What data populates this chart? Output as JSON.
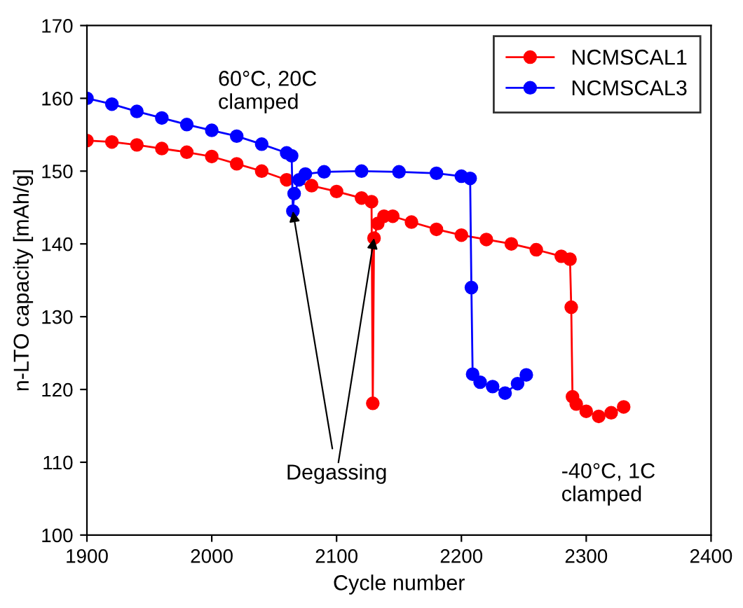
{
  "chart_data": {
    "type": "line",
    "xlabel": "Cycle number",
    "ylabel": "n-LTO capacity [mAh/g]",
    "xlim": [
      1900,
      2400
    ],
    "xticks": [
      1900,
      2000,
      2100,
      2200,
      2300,
      2400
    ],
    "ylim": [
      100,
      170
    ],
    "yticks": [
      100,
      110,
      120,
      130,
      140,
      150,
      160,
      170
    ],
    "grid": false,
    "legend": "top right",
    "marker": "circle",
    "line_style": "solid",
    "annotations": [
      "60°C, 20C\nclamped",
      {
        "text": "Degassing",
        "x": 2065,
        "y": 144.5
      },
      "-40°C, 1C\nclamped"
    ],
    "series": [
      {
        "name": "NCMSCAL1",
        "color": "#ff0000",
        "x": [
          1900,
          1920,
          1940,
          1960,
          1980,
          2000,
          2020,
          2040,
          2060,
          2080,
          2100,
          2120,
          2128,
          2129,
          2130,
          2133,
          2138,
          2145,
          2160,
          2180,
          2200,
          2220,
          2240,
          2260,
          2280,
          2287,
          2288,
          2289,
          2292,
          2300,
          2310,
          2320,
          2330
        ],
        "values": [
          154.2,
          154.0,
          153.6,
          153.1,
          152.6,
          152.0,
          151.0,
          150.0,
          148.8,
          148.0,
          147.2,
          146.3,
          145.8,
          118.1,
          140.8,
          142.8,
          143.8,
          143.8,
          143.0,
          142.0,
          141.2,
          140.6,
          140.0,
          139.2,
          138.3,
          137.9,
          131.3,
          119.0,
          118.0,
          117.0,
          116.3,
          116.8,
          117.6
        ]
      },
      {
        "name": "NCMSCAL3",
        "color": "#0000ff",
        "x": [
          1900,
          1920,
          1940,
          1960,
          1980,
          2000,
          2020,
          2040,
          2060,
          2064,
          2065,
          2066,
          2070,
          2075,
          2090,
          2120,
          2150,
          2180,
          2200,
          2207,
          2208,
          2209,
          2215,
          2225,
          2235,
          2245,
          2252
        ],
        "values": [
          160.0,
          159.2,
          158.2,
          157.3,
          156.4,
          155.6,
          154.8,
          153.7,
          152.5,
          152.1,
          144.5,
          146.9,
          148.8,
          149.6,
          149.9,
          150.0,
          149.9,
          149.7,
          149.3,
          149.0,
          134.0,
          122.1,
          121.0,
          120.4,
          119.5,
          120.8,
          122.0
        ]
      }
    ]
  }
}
